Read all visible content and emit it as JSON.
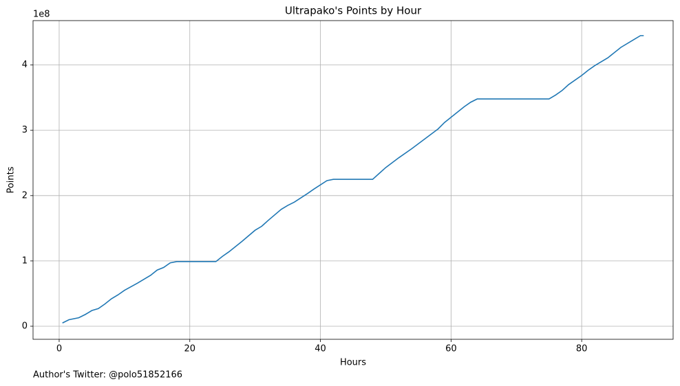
{
  "chart_data": {
    "type": "line",
    "title": "Ultrapako's Points by Hour",
    "xlabel": "Hours",
    "ylabel": "Points",
    "y_offset_label": "1e8",
    "footnote": "Author's Twitter: @polo51852166",
    "x": [
      0.5,
      1.5,
      3,
      4,
      5,
      6,
      7,
      8,
      9,
      10,
      12,
      14,
      15,
      16,
      17,
      18,
      24,
      25,
      26,
      28,
      30,
      31,
      32,
      34,
      35,
      36,
      38,
      39,
      41,
      42,
      48,
      49,
      50,
      52,
      54,
      56,
      58,
      59,
      60,
      62,
      63,
      64,
      75,
      76,
      77,
      78,
      80,
      81,
      82,
      84,
      86,
      88,
      89,
      89.5
    ],
    "series": [
      {
        "name": "Points",
        "color": "#1f77b4",
        "values": [
          0.05,
          0.1,
          0.13,
          0.18,
          0.24,
          0.27,
          0.34,
          0.42,
          0.48,
          0.55,
          0.66,
          0.78,
          0.86,
          0.9,
          0.97,
          0.99,
          0.99,
          1.07,
          1.14,
          1.3,
          1.47,
          1.53,
          1.62,
          1.79,
          1.85,
          1.9,
          2.03,
          2.1,
          2.23,
          2.25,
          2.25,
          2.34,
          2.43,
          2.58,
          2.72,
          2.87,
          3.02,
          3.12,
          3.2,
          3.36,
          3.43,
          3.48,
          3.48,
          3.54,
          3.61,
          3.7,
          3.84,
          3.92,
          3.99,
          4.11,
          4.27,
          4.39,
          4.45,
          4.45
        ]
      }
    ],
    "xlim": [
      -4,
      94
    ],
    "ylim": [
      -0.2,
      4.68
    ],
    "xticks": [
      0,
      20,
      40,
      60,
      80
    ],
    "yticks": [
      0,
      1,
      2,
      3,
      4
    ],
    "grid": true
  }
}
